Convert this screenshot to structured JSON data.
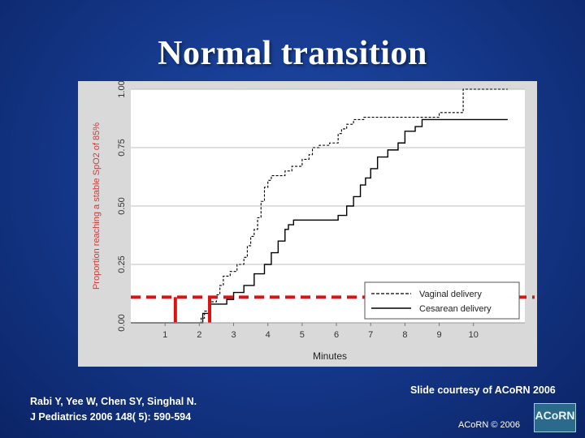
{
  "slide": {
    "title": "Normal transition",
    "citation_line1": "Rabi Y, Yee W, Chen SY, Singhal N.",
    "citation_line2": "J Pediatrics 2006 148( 5): 590-594",
    "courtesy": "Slide courtesy of ACoRN 2006",
    "copyright": "ACoRN © 2006",
    "logo_text": "ACoRN"
  },
  "colors": {
    "background": "#163a8e",
    "chart_panel": "#d9d9d9",
    "plot_area": "#ffffff",
    "series": "#000000",
    "threshold_marks": "#dd1111"
  },
  "chart_data": {
    "type": "line",
    "step": true,
    "xlabel": "Minutes",
    "ylabel": "Proportion reaching a stable SpO2 of 85%",
    "xlim": [
      0,
      11.5
    ],
    "ylim": [
      0,
      1
    ],
    "xticks": [
      "1",
      "2",
      "3",
      "4",
      "5",
      "6",
      "7",
      "8",
      "9",
      "10"
    ],
    "yticks": [
      "0.00",
      "0.25",
      "0.50",
      "0.75",
      "1.00"
    ],
    "grid": "horizontal",
    "legend_position": "bottom-right",
    "series": [
      {
        "name": "Vaginal delivery",
        "style": "dashed",
        "points": [
          [
            0,
            0.0
          ],
          [
            2.05,
            0.02
          ],
          [
            2.15,
            0.05
          ],
          [
            2.3,
            0.09
          ],
          [
            2.5,
            0.12
          ],
          [
            2.6,
            0.16
          ],
          [
            2.7,
            0.2
          ],
          [
            2.9,
            0.22
          ],
          [
            3.1,
            0.25
          ],
          [
            3.3,
            0.28
          ],
          [
            3.4,
            0.33
          ],
          [
            3.5,
            0.37
          ],
          [
            3.6,
            0.4
          ],
          [
            3.7,
            0.45
          ],
          [
            3.8,
            0.52
          ],
          [
            3.9,
            0.58
          ],
          [
            4.0,
            0.61
          ],
          [
            4.1,
            0.63
          ],
          [
            4.5,
            0.65
          ],
          [
            4.7,
            0.67
          ],
          [
            5.0,
            0.7
          ],
          [
            5.2,
            0.72
          ],
          [
            5.3,
            0.75
          ],
          [
            5.5,
            0.76
          ],
          [
            5.8,
            0.77
          ],
          [
            6.05,
            0.81
          ],
          [
            6.15,
            0.83
          ],
          [
            6.3,
            0.85
          ],
          [
            6.5,
            0.87
          ],
          [
            6.8,
            0.88
          ],
          [
            8.0,
            0.88
          ],
          [
            9.0,
            0.9
          ],
          [
            9.7,
            1.0
          ],
          [
            11.0,
            1.0
          ]
        ]
      },
      {
        "name": "Cesarean delivery",
        "style": "solid",
        "points": [
          [
            0,
            0.0
          ],
          [
            2.0,
            0.0
          ],
          [
            2.1,
            0.04
          ],
          [
            2.3,
            0.08
          ],
          [
            2.8,
            0.1
          ],
          [
            3.0,
            0.13
          ],
          [
            3.3,
            0.16
          ],
          [
            3.6,
            0.21
          ],
          [
            3.9,
            0.25
          ],
          [
            4.1,
            0.3
          ],
          [
            4.3,
            0.35
          ],
          [
            4.5,
            0.4
          ],
          [
            4.6,
            0.42
          ],
          [
            4.75,
            0.44
          ],
          [
            6.05,
            0.46
          ],
          [
            6.3,
            0.5
          ],
          [
            6.5,
            0.54
          ],
          [
            6.7,
            0.59
          ],
          [
            6.85,
            0.62
          ],
          [
            7.0,
            0.66
          ],
          [
            7.2,
            0.71
          ],
          [
            7.5,
            0.74
          ],
          [
            7.8,
            0.77
          ],
          [
            8.0,
            0.82
          ],
          [
            8.3,
            0.84
          ],
          [
            8.5,
            0.87
          ],
          [
            10.0,
            0.87
          ],
          [
            11.0,
            0.87
          ]
        ]
      }
    ],
    "threshold": {
      "style": "red dashed",
      "y": 0.11,
      "x_markers": [
        1.3,
        2.3
      ]
    }
  }
}
